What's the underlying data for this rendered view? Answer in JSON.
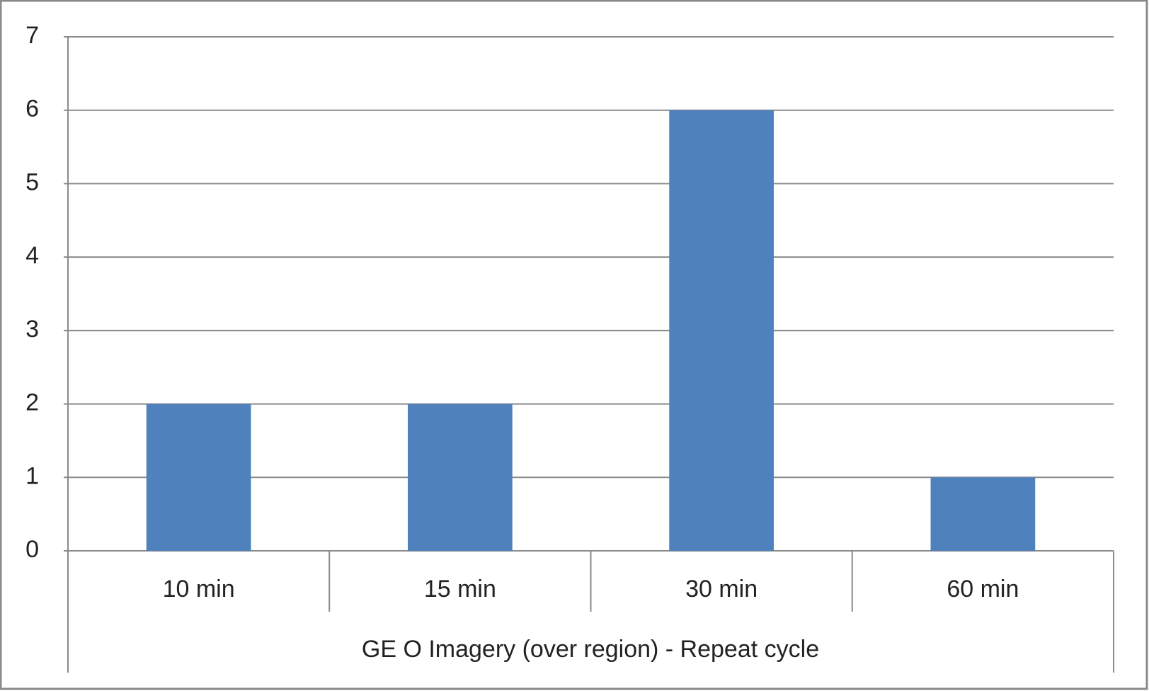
{
  "chart_data": {
    "type": "bar",
    "x_label": "GE O Imagery (over region) - Repeat cycle",
    "categories": [
      "10 min",
      "15 min",
      "30 min",
      "60 min"
    ],
    "values": [
      2,
      2,
      6,
      1
    ],
    "color": "#4f81bd",
    "ylim": [
      0,
      7
    ],
    "yticks": [
      0,
      1,
      2,
      3,
      4,
      5,
      6,
      7
    ],
    "grid": true
  }
}
